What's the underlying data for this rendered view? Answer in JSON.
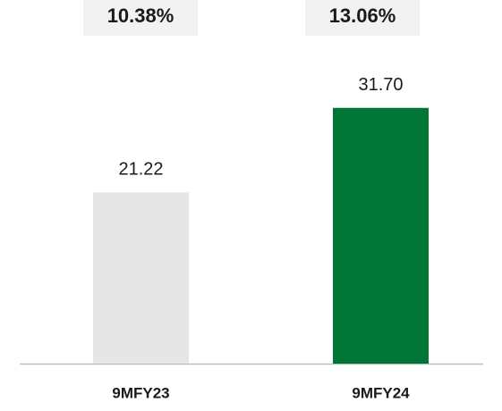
{
  "chart_data": {
    "type": "bar",
    "categories": [
      "9MFY23",
      "9MFY24"
    ],
    "values": [
      21.22,
      31.7
    ],
    "value_labels": [
      "21.22",
      "31.70"
    ],
    "colors": [
      "#e6e6e6",
      "#007535"
    ],
    "annotations": [
      "10.38%",
      "13.06%"
    ]
  }
}
